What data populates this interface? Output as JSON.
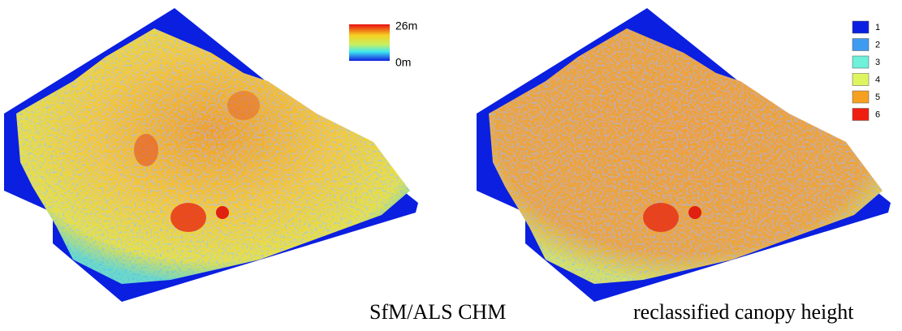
{
  "left_panel": {
    "caption": "SfM/ALS CHM",
    "colorbar": {
      "max_label": "26m",
      "min_label": "0m"
    }
  },
  "right_panel": {
    "caption": "reclassified canopy height",
    "legend": [
      {
        "label": "1",
        "color": "#0a1fe0"
      },
      {
        "label": "2",
        "color": "#3d9bf0"
      },
      {
        "label": "3",
        "color": "#6ff0d8"
      },
      {
        "label": "4",
        "color": "#dff560"
      },
      {
        "label": "5",
        "color": "#f5a020"
      },
      {
        "label": "6",
        "color": "#f01e10"
      }
    ]
  }
}
